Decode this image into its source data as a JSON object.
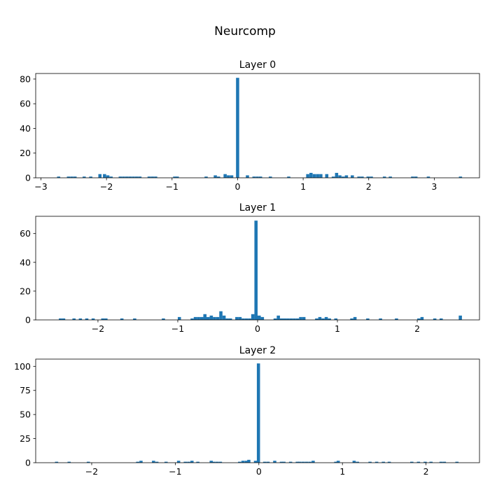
{
  "suptitle": "Neurcomp",
  "bar_color": "#1f77b4",
  "chart_data": [
    {
      "type": "bar",
      "title": "Layer 0",
      "xlabel": "",
      "ylabel": "",
      "xlim": [
        -3.08,
        3.69
      ],
      "ylim": [
        0,
        84.5
      ],
      "xticks": [
        -3,
        -2,
        -1,
        0,
        1,
        2,
        3
      ],
      "xtick_labels": [
        "−3",
        "−2",
        "−1",
        "0",
        "1",
        "2",
        "3"
      ],
      "yticks": [
        0,
        20,
        40,
        60,
        80
      ],
      "ytick_labels": [
        "0",
        "20",
        "40",
        "60",
        "80"
      ],
      "bin_width": 0.0485,
      "bins": [
        {
          "x": -2.73,
          "v": 1
        },
        {
          "x": -2.58,
          "v": 1
        },
        {
          "x": -2.53,
          "v": 1
        },
        {
          "x": -2.48,
          "v": 1
        },
        {
          "x": -2.34,
          "v": 1
        },
        {
          "x": -2.24,
          "v": 1
        },
        {
          "x": -2.1,
          "v": 3
        },
        {
          "x": -2.03,
          "v": 3
        },
        {
          "x": -1.98,
          "v": 2
        },
        {
          "x": -1.93,
          "v": 1
        },
        {
          "x": -1.79,
          "v": 1
        },
        {
          "x": -1.74,
          "v": 1
        },
        {
          "x": -1.69,
          "v": 1
        },
        {
          "x": -1.64,
          "v": 1
        },
        {
          "x": -1.59,
          "v": 1
        },
        {
          "x": -1.54,
          "v": 1
        },
        {
          "x": -1.49,
          "v": 1
        },
        {
          "x": -1.35,
          "v": 1
        },
        {
          "x": -1.3,
          "v": 1
        },
        {
          "x": -1.25,
          "v": 1
        },
        {
          "x": -0.96,
          "v": 1
        },
        {
          "x": -0.92,
          "v": 1
        },
        {
          "x": -0.48,
          "v": 1
        },
        {
          "x": -0.34,
          "v": 2
        },
        {
          "x": -0.29,
          "v": 1
        },
        {
          "x": -0.19,
          "v": 3
        },
        {
          "x": -0.14,
          "v": 2
        },
        {
          "x": -0.09,
          "v": 2
        },
        {
          "x": 0.0,
          "v": 81
        },
        {
          "x": 0.15,
          "v": 2
        },
        {
          "x": 0.25,
          "v": 1
        },
        {
          "x": 0.3,
          "v": 1
        },
        {
          "x": 0.35,
          "v": 1
        },
        {
          "x": 0.5,
          "v": 1
        },
        {
          "x": 0.78,
          "v": 1
        },
        {
          "x": 1.07,
          "v": 3
        },
        {
          "x": 1.12,
          "v": 4
        },
        {
          "x": 1.17,
          "v": 3
        },
        {
          "x": 1.22,
          "v": 3
        },
        {
          "x": 1.27,
          "v": 3
        },
        {
          "x": 1.36,
          "v": 3
        },
        {
          "x": 1.46,
          "v": 1
        },
        {
          "x": 1.51,
          "v": 4
        },
        {
          "x": 1.56,
          "v": 2
        },
        {
          "x": 1.61,
          "v": 1
        },
        {
          "x": 1.66,
          "v": 2
        },
        {
          "x": 1.75,
          "v": 2
        },
        {
          "x": 1.85,
          "v": 1
        },
        {
          "x": 1.9,
          "v": 1
        },
        {
          "x": 1.99,
          "v": 1
        },
        {
          "x": 2.04,
          "v": 1
        },
        {
          "x": 2.24,
          "v": 1
        },
        {
          "x": 2.33,
          "v": 1
        },
        {
          "x": 2.67,
          "v": 1
        },
        {
          "x": 2.72,
          "v": 1
        },
        {
          "x": 2.91,
          "v": 1
        },
        {
          "x": 3.4,
          "v": 1
        }
      ]
    },
    {
      "type": "bar",
      "title": "Layer 1",
      "xlabel": "",
      "ylabel": "",
      "xlim": [
        -2.78,
        2.78
      ],
      "ylim": [
        0,
        72
      ],
      "xticks": [
        -2,
        -1,
        0,
        1,
        2
      ],
      "xtick_labels": [
        "−2",
        "−1",
        "0",
        "1",
        "2"
      ],
      "yticks": [
        0,
        20,
        40,
        60
      ],
      "ytick_labels": [
        "0",
        "20",
        "40",
        "60"
      ],
      "bin_width": 0.04,
      "bins": [
        {
          "x": -2.47,
          "v": 1
        },
        {
          "x": -2.43,
          "v": 1
        },
        {
          "x": -2.3,
          "v": 1
        },
        {
          "x": -2.22,
          "v": 1
        },
        {
          "x": -2.14,
          "v": 1
        },
        {
          "x": -2.06,
          "v": 1
        },
        {
          "x": -1.94,
          "v": 1
        },
        {
          "x": -1.9,
          "v": 1
        },
        {
          "x": -1.7,
          "v": 1
        },
        {
          "x": -1.54,
          "v": 1
        },
        {
          "x": -1.18,
          "v": 1
        },
        {
          "x": -0.98,
          "v": 2
        },
        {
          "x": -0.82,
          "v": 1
        },
        {
          "x": -0.78,
          "v": 2
        },
        {
          "x": -0.74,
          "v": 2
        },
        {
          "x": -0.7,
          "v": 2
        },
        {
          "x": -0.66,
          "v": 4
        },
        {
          "x": -0.62,
          "v": 2
        },
        {
          "x": -0.58,
          "v": 3
        },
        {
          "x": -0.54,
          "v": 2
        },
        {
          "x": -0.5,
          "v": 2
        },
        {
          "x": -0.46,
          "v": 6
        },
        {
          "x": -0.42,
          "v": 3
        },
        {
          "x": -0.38,
          "v": 1
        },
        {
          "x": -0.34,
          "v": 1
        },
        {
          "x": -0.26,
          "v": 2
        },
        {
          "x": -0.22,
          "v": 2
        },
        {
          "x": -0.18,
          "v": 1
        },
        {
          "x": -0.14,
          "v": 1
        },
        {
          "x": -0.1,
          "v": 1
        },
        {
          "x": -0.06,
          "v": 4
        },
        {
          "x": -0.02,
          "v": 69
        },
        {
          "x": 0.02,
          "v": 3
        },
        {
          "x": 0.06,
          "v": 2
        },
        {
          "x": 0.22,
          "v": 1
        },
        {
          "x": 0.26,
          "v": 3
        },
        {
          "x": 0.3,
          "v": 1
        },
        {
          "x": 0.34,
          "v": 1
        },
        {
          "x": 0.38,
          "v": 1
        },
        {
          "x": 0.42,
          "v": 1
        },
        {
          "x": 0.46,
          "v": 1
        },
        {
          "x": 0.5,
          "v": 1
        },
        {
          "x": 0.54,
          "v": 2
        },
        {
          "x": 0.58,
          "v": 2
        },
        {
          "x": 0.74,
          "v": 1
        },
        {
          "x": 0.78,
          "v": 2
        },
        {
          "x": 0.82,
          "v": 1
        },
        {
          "x": 0.86,
          "v": 2
        },
        {
          "x": 0.9,
          "v": 1
        },
        {
          "x": 0.98,
          "v": 1
        },
        {
          "x": 1.18,
          "v": 1
        },
        {
          "x": 1.22,
          "v": 2
        },
        {
          "x": 1.38,
          "v": 1
        },
        {
          "x": 1.54,
          "v": 1
        },
        {
          "x": 1.74,
          "v": 1
        },
        {
          "x": 2.02,
          "v": 1
        },
        {
          "x": 2.06,
          "v": 2
        },
        {
          "x": 2.22,
          "v": 1
        },
        {
          "x": 2.3,
          "v": 1
        },
        {
          "x": 2.54,
          "v": 3
        }
      ]
    },
    {
      "type": "bar",
      "title": "Layer 2",
      "xlabel": "",
      "ylabel": "",
      "xlim": [
        -2.67,
        2.64
      ],
      "ylim": [
        0,
        107.5
      ],
      "xticks": [
        -2,
        -1,
        0,
        1,
        2
      ],
      "xtick_labels": [
        "−2",
        "−1",
        "0",
        "1",
        "2"
      ],
      "yticks": [
        0,
        25,
        50,
        75,
        100
      ],
      "ytick_labels": [
        "0",
        "25",
        "50",
        "75",
        "100"
      ],
      "bin_width": 0.038,
      "bins": [
        {
          "x": -2.42,
          "v": 1
        },
        {
          "x": -2.27,
          "v": 1
        },
        {
          "x": -2.04,
          "v": 1
        },
        {
          "x": -1.45,
          "v": 1
        },
        {
          "x": -1.41,
          "v": 2
        },
        {
          "x": -1.26,
          "v": 2
        },
        {
          "x": -1.22,
          "v": 1
        },
        {
          "x": -1.11,
          "v": 1
        },
        {
          "x": -0.96,
          "v": 2
        },
        {
          "x": -0.88,
          "v": 1
        },
        {
          "x": -0.84,
          "v": 1
        },
        {
          "x": -0.8,
          "v": 2
        },
        {
          "x": -0.73,
          "v": 1
        },
        {
          "x": -0.57,
          "v": 2
        },
        {
          "x": -0.54,
          "v": 1
        },
        {
          "x": -0.5,
          "v": 1
        },
        {
          "x": -0.46,
          "v": 1
        },
        {
          "x": -0.23,
          "v": 1
        },
        {
          "x": -0.19,
          "v": 2
        },
        {
          "x": -0.15,
          "v": 2
        },
        {
          "x": -0.12,
          "v": 3
        },
        {
          "x": -0.04,
          "v": 2
        },
        {
          "x": -0.005,
          "v": 103
        },
        {
          "x": 0.07,
          "v": 1
        },
        {
          "x": 0.11,
          "v": 1
        },
        {
          "x": 0.19,
          "v": 2
        },
        {
          "x": 0.27,
          "v": 1
        },
        {
          "x": 0.3,
          "v": 1
        },
        {
          "x": 0.38,
          "v": 1
        },
        {
          "x": 0.46,
          "v": 1
        },
        {
          "x": 0.49,
          "v": 1
        },
        {
          "x": 0.53,
          "v": 1
        },
        {
          "x": 0.57,
          "v": 1
        },
        {
          "x": 0.61,
          "v": 1
        },
        {
          "x": 0.65,
          "v": 2
        },
        {
          "x": 0.92,
          "v": 1
        },
        {
          "x": 0.95,
          "v": 2
        },
        {
          "x": 1.14,
          "v": 2
        },
        {
          "x": 1.18,
          "v": 1
        },
        {
          "x": 1.33,
          "v": 1
        },
        {
          "x": 1.41,
          "v": 1
        },
        {
          "x": 1.49,
          "v": 1
        },
        {
          "x": 1.56,
          "v": 1
        },
        {
          "x": 1.83,
          "v": 1
        },
        {
          "x": 1.91,
          "v": 1
        },
        {
          "x": 1.99,
          "v": 1
        },
        {
          "x": 2.06,
          "v": 1
        },
        {
          "x": 2.18,
          "v": 1
        },
        {
          "x": 2.22,
          "v": 1
        },
        {
          "x": 2.37,
          "v": 1
        }
      ]
    }
  ]
}
